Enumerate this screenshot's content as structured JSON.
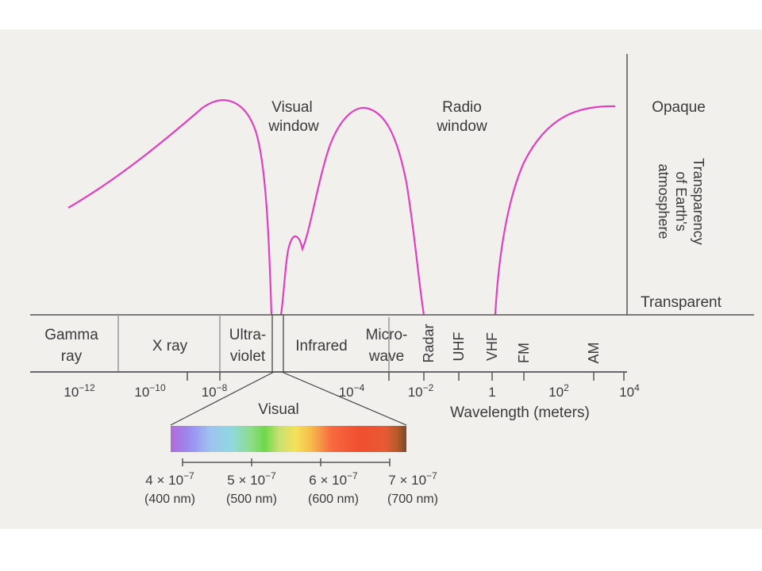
{
  "curve_labels": {
    "visual_window": [
      "Visual",
      "window"
    ],
    "radio_window": [
      "Radio",
      "window"
    ]
  },
  "transparency_axis": {
    "top": "Opaque",
    "bottom": "Transparent",
    "title": [
      "Transparency",
      "of Earth's",
      "atmosphere"
    ]
  },
  "bands": [
    {
      "lines": [
        "Gamma",
        "ray"
      ]
    },
    {
      "lines": [
        "X ray"
      ]
    },
    {
      "lines": [
        "Ultra-",
        "violet"
      ]
    },
    {
      "lines": [
        "Infrared"
      ]
    },
    {
      "lines": [
        "Micro-",
        "wave"
      ]
    },
    {
      "lines": [
        "Radar"
      ],
      "vertical": true
    },
    {
      "lines": [
        "UHF"
      ],
      "vertical": true
    },
    {
      "lines": [
        "VHF"
      ],
      "vertical": true
    },
    {
      "lines": [
        "FM"
      ],
      "vertical": true
    },
    {
      "lines": [
        "AM"
      ],
      "vertical": true
    }
  ],
  "wavelength_ticks": [
    {
      "base": "10",
      "exp": "−12"
    },
    {
      "base": "10",
      "exp": "−10"
    },
    {
      "base": "10",
      "exp": "−8"
    },
    {
      "base": "10",
      "exp": "−4"
    },
    {
      "base": "10",
      "exp": "−2"
    },
    {
      "base": "1",
      "exp": ""
    },
    {
      "base": "10",
      "exp": "2"
    },
    {
      "base": "10",
      "exp": "4"
    }
  ],
  "axis_title": "Wavelength (meters)",
  "visual_label": "Visual",
  "visible_ticks": [
    {
      "value": "4 × 10",
      "exp": "−7",
      "nm": "(400 nm)"
    },
    {
      "value": "5 × 10",
      "exp": "−7",
      "nm": "(500 nm)"
    },
    {
      "value": "6 × 10",
      "exp": "−7",
      "nm": "(600 nm)"
    },
    {
      "value": "7 × 10",
      "exp": "−7",
      "nm": "(700 nm)"
    }
  ],
  "colors": {
    "curve": "#e040c0",
    "text": "#3a3a3a",
    "line": "#555555",
    "background": "#f1f0ed"
  }
}
